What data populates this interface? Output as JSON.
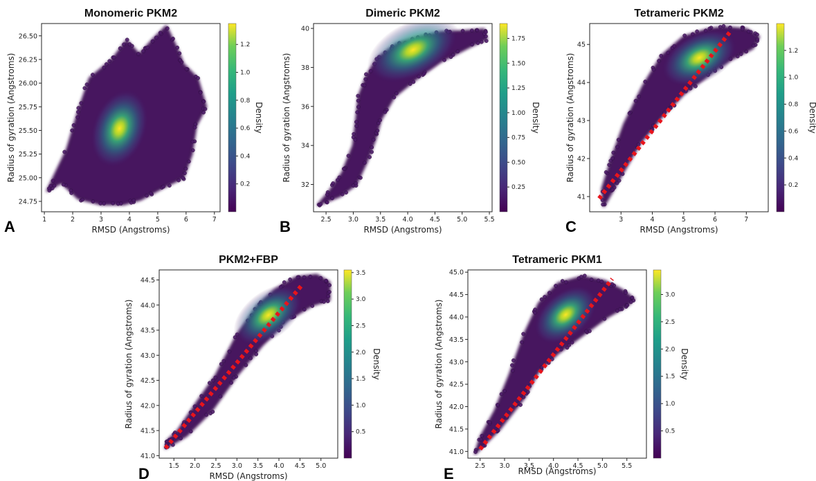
{
  "chart_data": [
    {
      "type": "scatter",
      "letter": "A",
      "title": "Monomeric PKM2",
      "xlabel": "RMSD (Angstroms)",
      "ylabel": "Radius of gyration (Angstroms)",
      "colorbar_label": "Density",
      "xlim": [
        0.9,
        7.2
      ],
      "ylim": [
        24.64,
        26.63
      ],
      "xticks": [
        1,
        2,
        3,
        4,
        5,
        6,
        7
      ],
      "xtick_labels": [
        "1",
        "2",
        "3",
        "4",
        "5",
        "6",
        "7"
      ],
      "yticks": [
        24.75,
        25.0,
        25.25,
        25.5,
        25.75,
        26.0,
        26.25,
        26.5
      ],
      "ytick_labels": [
        "24.75",
        "25.00",
        "25.25",
        "25.50",
        "25.75",
        "26.00",
        "26.25",
        "26.50"
      ],
      "colorbar_range": [
        0,
        1.35
      ],
      "colorbar_ticks": [
        0.2,
        0.4,
        0.6,
        0.8,
        1.0,
        1.2
      ],
      "colorbar_tick_labels": [
        "0.2",
        "0.4",
        "0.6",
        "0.8",
        "1.0",
        "1.2"
      ],
      "density_center": [
        3.65,
        25.52
      ],
      "outline": [
        [
          1.1,
          24.86
        ],
        [
          1.6,
          24.95
        ],
        [
          2.2,
          24.78
        ],
        [
          3.0,
          24.72
        ],
        [
          3.8,
          24.72
        ],
        [
          4.4,
          24.77
        ],
        [
          5.2,
          24.9
        ],
        [
          5.9,
          25.0
        ],
        [
          6.2,
          25.25
        ],
        [
          6.35,
          25.55
        ],
        [
          6.7,
          25.75
        ],
        [
          6.4,
          26.05
        ],
        [
          5.9,
          26.2
        ],
        [
          5.7,
          26.35
        ],
        [
          5.3,
          26.6
        ],
        [
          4.8,
          26.45
        ],
        [
          4.35,
          26.3
        ],
        [
          3.9,
          26.45
        ],
        [
          3.4,
          26.25
        ],
        [
          2.6,
          26.05
        ],
        [
          2.2,
          25.7
        ],
        [
          1.8,
          25.3
        ]
      ],
      "trend_line": null
    },
    {
      "type": "scatter",
      "letter": "B",
      "title": "Dimeric PKM2",
      "xlabel": "RMSD (Angstroms)",
      "ylabel": "Radius of gyration (Angstroms)",
      "colorbar_label": "Density",
      "xlim": [
        2.27,
        5.55
      ],
      "ylim": [
        30.6,
        40.25
      ],
      "xticks": [
        2.5,
        3.0,
        3.5,
        4.0,
        4.5,
        5.0,
        5.5
      ],
      "xtick_labels": [
        "2.5",
        "3.0",
        "3.5",
        "4.0",
        "4.5",
        "5.0",
        "5.5"
      ],
      "yticks": [
        32,
        34,
        36,
        38,
        40
      ],
      "ytick_labels": [
        "32",
        "34",
        "36",
        "38",
        "40"
      ],
      "colorbar_range": [
        0,
        1.9
      ],
      "colorbar_ticks": [
        0.25,
        0.5,
        0.75,
        1.0,
        1.25,
        1.5,
        1.75
      ],
      "colorbar_tick_labels": [
        "0.25",
        "0.50",
        "0.75",
        "1.00",
        "1.25",
        "1.50",
        "1.75"
      ],
      "density_center": [
        4.1,
        38.9
      ],
      "outline": [
        [
          2.35,
          30.95
        ],
        [
          2.75,
          31.4
        ],
        [
          3.05,
          32.0
        ],
        [
          3.25,
          33.2
        ],
        [
          3.4,
          34.3
        ],
        [
          3.5,
          35.3
        ],
        [
          3.75,
          36.5
        ],
        [
          4.15,
          37.4
        ],
        [
          4.6,
          38.3
        ],
        [
          5.2,
          39.15
        ],
        [
          5.45,
          39.45
        ],
        [
          5.4,
          39.95
        ],
        [
          5.0,
          39.85
        ],
        [
          4.6,
          39.8
        ],
        [
          4.2,
          39.55
        ],
        [
          3.8,
          39.2
        ],
        [
          3.45,
          38.5
        ],
        [
          3.25,
          37.6
        ],
        [
          3.1,
          36.5
        ],
        [
          3.05,
          35.2
        ],
        [
          3.0,
          34.0
        ],
        [
          2.8,
          32.6
        ],
        [
          2.55,
          31.6
        ]
      ],
      "trend_line": null
    },
    {
      "type": "scatter",
      "letter": "C",
      "title": "Tetrameric PKM2",
      "xlabel": "RMSD (Angstroms)",
      "ylabel": "Radius of gyration (Angstroms)",
      "colorbar_label": "Density",
      "xlim": [
        2.0,
        7.7
      ],
      "ylim": [
        40.6,
        45.55
      ],
      "xticks": [
        3,
        4,
        5,
        6,
        7
      ],
      "xtick_labels": [
        "3",
        "4",
        "5",
        "6",
        "7"
      ],
      "yticks": [
        41,
        42,
        43,
        44,
        45
      ],
      "ytick_labels": [
        "41",
        "42",
        "43",
        "44",
        "45"
      ],
      "colorbar_range": [
        0,
        1.4
      ],
      "colorbar_ticks": [
        0.2,
        0.4,
        0.6,
        0.8,
        1.0,
        1.2
      ],
      "colorbar_tick_labels": [
        "0.2",
        "0.4",
        "0.6",
        "0.8",
        "1.0",
        "1.2"
      ],
      "density_center": [
        5.5,
        44.65
      ],
      "outline": [
        [
          2.45,
          40.75
        ],
        [
          2.9,
          41.4
        ],
        [
          3.6,
          42.4
        ],
        [
          4.3,
          43.1
        ],
        [
          5.0,
          43.7
        ],
        [
          5.8,
          44.2
        ],
        [
          6.5,
          44.6
        ],
        [
          7.2,
          44.9
        ],
        [
          7.4,
          45.2
        ],
        [
          7.0,
          45.4
        ],
        [
          6.3,
          45.45
        ],
        [
          5.8,
          45.4
        ],
        [
          5.0,
          45.2
        ],
        [
          4.3,
          44.7
        ],
        [
          3.7,
          43.9
        ],
        [
          3.1,
          42.9
        ],
        [
          2.7,
          42.0
        ],
        [
          2.4,
          41.2
        ]
      ],
      "trend_line": {
        "x": [
          2.3,
          6.5
        ],
        "y": [
          40.95,
          45.35
        ]
      }
    },
    {
      "type": "scatter",
      "letter": "D",
      "title": "PKM2+FBP",
      "xlabel": "RMSD (Angstroms)",
      "ylabel": "Radius of gyration (Angstroms)",
      "colorbar_label": "Density",
      "xlim": [
        1.15,
        5.4
      ],
      "ylim": [
        40.95,
        44.7
      ],
      "xticks": [
        1.5,
        2.0,
        2.5,
        3.0,
        3.5,
        4.0,
        4.5,
        5.0
      ],
      "xtick_labels": [
        "1.5",
        "2.0",
        "2.5",
        "3.0",
        "3.5",
        "4.0",
        "4.5",
        "5.0"
      ],
      "yticks": [
        41.0,
        41.5,
        42.0,
        42.5,
        43.0,
        43.5,
        44.0,
        44.5
      ],
      "ytick_labels": [
        "41.0",
        "41.5",
        "42.0",
        "42.5",
        "43.0",
        "43.5",
        "44.0",
        "44.5"
      ],
      "colorbar_range": [
        0,
        3.55
      ],
      "colorbar_ticks": [
        0.5,
        1.0,
        1.5,
        2.0,
        2.5,
        3.0,
        3.5
      ],
      "colorbar_tick_labels": [
        "0.5",
        "1.0",
        "1.5",
        "2.0",
        "2.5",
        "3.0",
        "3.5"
      ],
      "density_center": [
        3.75,
        43.8
      ],
      "outline": [
        [
          1.3,
          41.15
        ],
        [
          1.8,
          41.4
        ],
        [
          2.4,
          41.9
        ],
        [
          3.0,
          42.6
        ],
        [
          3.6,
          43.2
        ],
        [
          4.2,
          43.7
        ],
        [
          4.8,
          44.0
        ],
        [
          5.2,
          44.1
        ],
        [
          5.2,
          44.45
        ],
        [
          4.9,
          44.6
        ],
        [
          4.4,
          44.55
        ],
        [
          3.9,
          44.3
        ],
        [
          3.5,
          44.0
        ],
        [
          3.0,
          43.4
        ],
        [
          2.5,
          42.6
        ],
        [
          2.0,
          42.0
        ],
        [
          1.6,
          41.5
        ],
        [
          1.35,
          41.3
        ]
      ],
      "trend_line": {
        "x": [
          1.3,
          4.55
        ],
        "y": [
          41.15,
          44.4
        ]
      }
    },
    {
      "type": "scatter",
      "letter": "E",
      "title": "Tetrameric PKM1",
      "xlabel": "RMSD (Angstroms)",
      "ylabel": "Radius of gyration (Angstroms)",
      "colorbar_label": "Density",
      "xlim": [
        2.25,
        5.9
      ],
      "ylim": [
        40.85,
        45.05
      ],
      "xticks": [
        2.5,
        3.0,
        3.5,
        4.0,
        4.5,
        5.0,
        5.5
      ],
      "xtick_labels": [
        "2.5",
        "3.0",
        "3.5",
        "4.0",
        "4.5",
        "5.0",
        "5.5"
      ],
      "yticks": [
        41.0,
        41.5,
        42.0,
        42.5,
        43.0,
        43.5,
        44.0,
        44.5,
        45.0
      ],
      "ytick_labels": [
        "41.0",
        "41.5",
        "42.0",
        "42.5",
        "43.0",
        "43.5",
        "44.0",
        "44.5",
        "45.0"
      ],
      "colorbar_range": [
        0,
        3.45
      ],
      "colorbar_ticks": [
        0.5,
        1.0,
        1.5,
        2.0,
        2.5,
        3.0
      ],
      "colorbar_tick_labels": [
        "0.5",
        "1.0",
        "1.5",
        "2.0",
        "2.5",
        "3.0"
      ],
      "density_center": [
        4.25,
        44.05
      ],
      "outline": [
        [
          2.4,
          40.95
        ],
        [
          2.9,
          41.5
        ],
        [
          3.4,
          42.2
        ],
        [
          3.7,
          42.8
        ],
        [
          4.1,
          43.2
        ],
        [
          4.6,
          43.6
        ],
        [
          5.1,
          44.0
        ],
        [
          5.5,
          44.25
        ],
        [
          5.65,
          44.4
        ],
        [
          5.4,
          44.6
        ],
        [
          5.05,
          44.8
        ],
        [
          4.6,
          44.9
        ],
        [
          4.1,
          44.75
        ],
        [
          3.7,
          44.3
        ],
        [
          3.4,
          43.6
        ],
        [
          3.1,
          42.7
        ],
        [
          2.8,
          41.9
        ],
        [
          2.5,
          41.3
        ]
      ],
      "trend_line": {
        "x": [
          2.5,
          5.2
        ],
        "y": [
          41.05,
          44.85
        ]
      }
    }
  ]
}
